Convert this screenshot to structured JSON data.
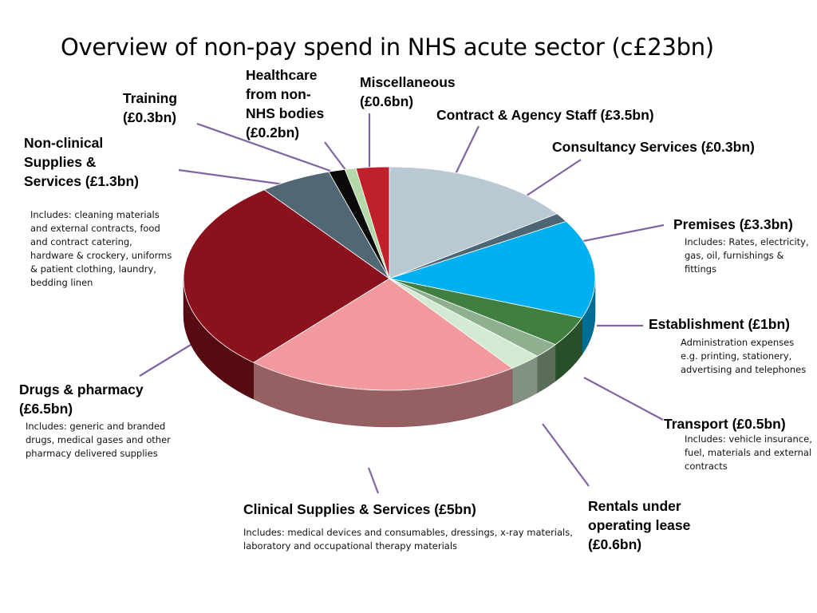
{
  "page": {
    "title": "Overview of non-pay spend in NHS acute sector (c£23bn)"
  },
  "chart_data": {
    "type": "pie",
    "title": "Overview of non-pay spend in NHS acute sector (c£23bn)",
    "units": "£bn",
    "slices": [
      {
        "label": "Contract & Agency Staff (£3.5bn)",
        "value": 3.5,
        "color": "#b9c9d3",
        "note": ""
      },
      {
        "label": "Consultancy Services (£0.3bn)",
        "value": 0.3,
        "color": "#4e6674",
        "note": ""
      },
      {
        "label": "Premises (£3.3bn)",
        "value": 3.3,
        "color": "#00b0f0",
        "note": "Includes: Rates, electricity,\ngas,  oil, furnishings &\nfittings"
      },
      {
        "label": "Establishment (£1bn)",
        "value": 1.0,
        "color": "#3f8040",
        "note": "Administration expenses\ne.g. printing, stationery,\nadvertising and telephones"
      },
      {
        "label": "Transport (£0.5bn)",
        "value": 0.5,
        "color": "#8fb08f",
        "note": "Includes: vehicle insurance,\nfuel, materials and external\ncontracts"
      },
      {
        "label": "Rentals under\noperating lease\n(£0.6bn)",
        "value": 0.6,
        "color": "#d2ead2",
        "note": ""
      },
      {
        "label": "Clinical Supplies & Services (£5bn)",
        "value": 5.0,
        "color": "#f2999e",
        "note": "Includes: medical devices and consumables, dressings, x-ray materials,\nlaboratory and occupational therapy materials"
      },
      {
        "label": "Drugs & pharmacy\n (£6.5bn)",
        "value": 6.5,
        "color": "#8b121d",
        "note": "Includes: generic and branded\ndrugs, medical gases and other\npharmacy delivered supplies"
      },
      {
        "label": "Non-clinical\nSupplies &\nServices (£1.3bn)",
        "value": 1.3,
        "color": "#516774",
        "note": "Includes: cleaning materials\nand external contracts, food\nand contract catering,\nhardware & crockery, uniforms\n& patient clothing, laundry,\nbedding linen"
      },
      {
        "label": "Training\n(£0.3bn)",
        "value": 0.3,
        "color": "#0a0a0a",
        "note": ""
      },
      {
        "label": "Healthcare\nfrom non-\nNHS bodies\n(£0.2bn)",
        "value": 0.2,
        "color": "#b5d8a8",
        "note": ""
      },
      {
        "label": "Miscellaneous\n (£0.6bn)",
        "value": 0.6,
        "color": "#c0202a",
        "note": ""
      }
    ],
    "colors": {
      "leader_line": "#8064a2"
    }
  }
}
